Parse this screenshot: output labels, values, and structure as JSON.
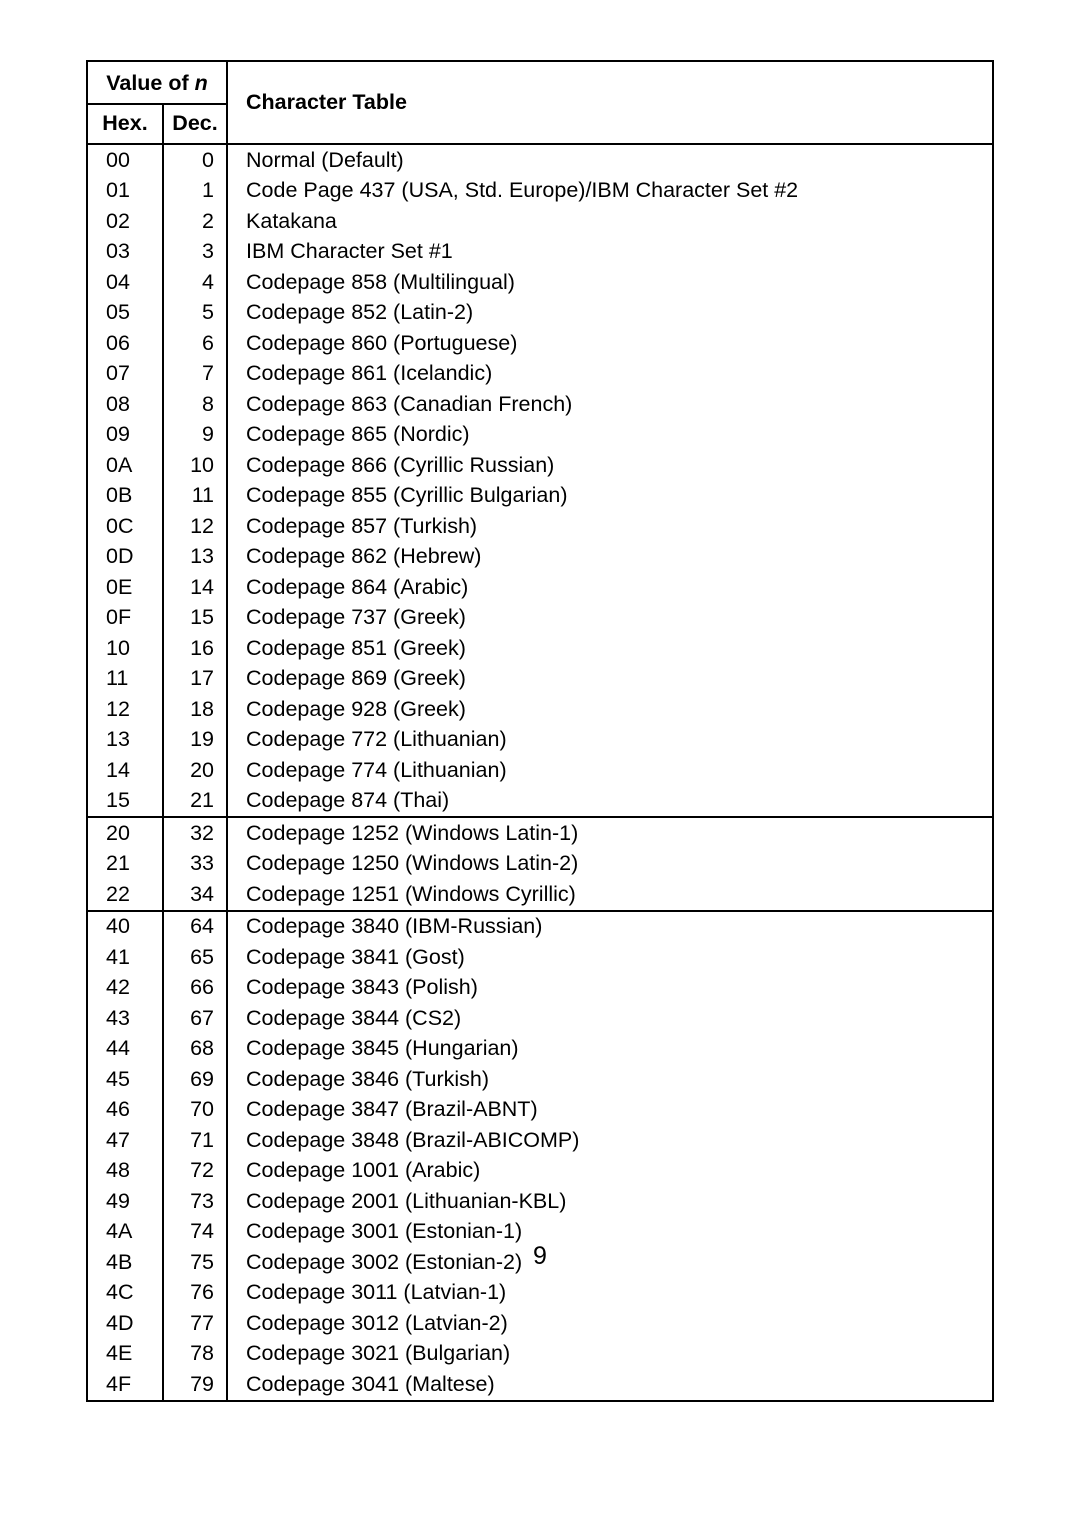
{
  "page_number": "9",
  "colors": {
    "text": "#000000",
    "bg": "#ffffff",
    "border": "#000000"
  },
  "font": {
    "family": "Arial, Helvetica, sans-serif",
    "size_pt": 16,
    "header_weight": "bold"
  },
  "header": {
    "value_of_n": "Value of",
    "value_of_n_var": "n",
    "hex": "Hex.",
    "dec": "Dec.",
    "character_table": "Character Table"
  },
  "sections": [
    {
      "rows": [
        {
          "hex": "00",
          "dec": "0",
          "desc": "Normal (Default)"
        },
        {
          "hex": "01",
          "dec": "1",
          "desc": "Code Page 437 (USA, Std. Europe)/IBM Character Set #2"
        },
        {
          "hex": "02",
          "dec": "2",
          "desc": "Katakana"
        },
        {
          "hex": "03",
          "dec": "3",
          "desc": "IBM Character Set #1"
        },
        {
          "hex": "04",
          "dec": "4",
          "desc": "Codepage 858 (Multilingual)"
        },
        {
          "hex": "05",
          "dec": "5",
          "desc": "Codepage 852 (Latin-2)"
        },
        {
          "hex": "06",
          "dec": "6",
          "desc": "Codepage 860 (Portuguese)"
        },
        {
          "hex": "07",
          "dec": "7",
          "desc": "Codepage 861 (Icelandic)"
        },
        {
          "hex": "08",
          "dec": "8",
          "desc": "Codepage 863 (Canadian French)"
        },
        {
          "hex": "09",
          "dec": "9",
          "desc": "Codepage 865 (Nordic)"
        },
        {
          "hex": "0A",
          "dec": "10",
          "desc": "Codepage 866 (Cyrillic Russian)"
        },
        {
          "hex": "0B",
          "dec": "11",
          "desc": "Codepage 855 (Cyrillic Bulgarian)"
        },
        {
          "hex": "0C",
          "dec": "12",
          "desc": "Codepage 857 (Turkish)"
        },
        {
          "hex": "0D",
          "dec": "13",
          "desc": "Codepage 862 (Hebrew)"
        },
        {
          "hex": "0E",
          "dec": "14",
          "desc": "Codepage 864 (Arabic)"
        },
        {
          "hex": "0F",
          "dec": "15",
          "desc": "Codepage 737 (Greek)"
        },
        {
          "hex": "10",
          "dec": "16",
          "desc": "Codepage 851 (Greek)"
        },
        {
          "hex": "11",
          "dec": "17",
          "desc": "Codepage 869 (Greek)"
        },
        {
          "hex": "12",
          "dec": "18",
          "desc": "Codepage 928 (Greek)"
        },
        {
          "hex": "13",
          "dec": "19",
          "desc": "Codepage 772 (Lithuanian)"
        },
        {
          "hex": "14",
          "dec": "20",
          "desc": "Codepage 774 (Lithuanian)"
        },
        {
          "hex": "15",
          "dec": "21",
          "desc": "Codepage 874 (Thai)"
        }
      ]
    },
    {
      "rows": [
        {
          "hex": "20",
          "dec": "32",
          "desc": "Codepage 1252 (Windows Latin-1)"
        },
        {
          "hex": "21",
          "dec": "33",
          "desc": "Codepage 1250 (Windows Latin-2)"
        },
        {
          "hex": "22",
          "dec": "34",
          "desc": "Codepage 1251 (Windows Cyrillic)"
        }
      ]
    },
    {
      "rows": [
        {
          "hex": "40",
          "dec": "64",
          "desc": "Codepage 3840 (IBM-Russian)"
        },
        {
          "hex": "41",
          "dec": "65",
          "desc": "Codepage 3841 (Gost)"
        },
        {
          "hex": "42",
          "dec": "66",
          "desc": "Codepage 3843 (Polish)"
        },
        {
          "hex": "43",
          "dec": "67",
          "desc": "Codepage 3844 (CS2)"
        },
        {
          "hex": "44",
          "dec": "68",
          "desc": "Codepage 3845 (Hungarian)"
        },
        {
          "hex": "45",
          "dec": "69",
          "desc": "Codepage 3846 (Turkish)"
        },
        {
          "hex": "46",
          "dec": "70",
          "desc": "Codepage 3847 (Brazil-ABNT)"
        },
        {
          "hex": "47",
          "dec": "71",
          "desc": "Codepage 3848 (Brazil-ABICOMP)"
        },
        {
          "hex": "48",
          "dec": "72",
          "desc": "Codepage 1001 (Arabic)"
        },
        {
          "hex": "49",
          "dec": "73",
          "desc": "Codepage 2001 (Lithuanian-KBL)"
        },
        {
          "hex": "4A",
          "dec": "74",
          "desc": "Codepage 3001 (Estonian-1)"
        },
        {
          "hex": "4B",
          "dec": "75",
          "desc": "Codepage 3002 (Estonian-2)"
        },
        {
          "hex": "4C",
          "dec": "76",
          "desc": "Codepage 3011 (Latvian-1)"
        },
        {
          "hex": "4D",
          "dec": "77",
          "desc": "Codepage 3012 (Latvian-2)"
        },
        {
          "hex": "4E",
          "dec": "78",
          "desc": "Codepage 3021 (Bulgarian)"
        },
        {
          "hex": "4F",
          "dec": "79",
          "desc": "Codepage 3041 (Maltese)"
        }
      ]
    }
  ]
}
